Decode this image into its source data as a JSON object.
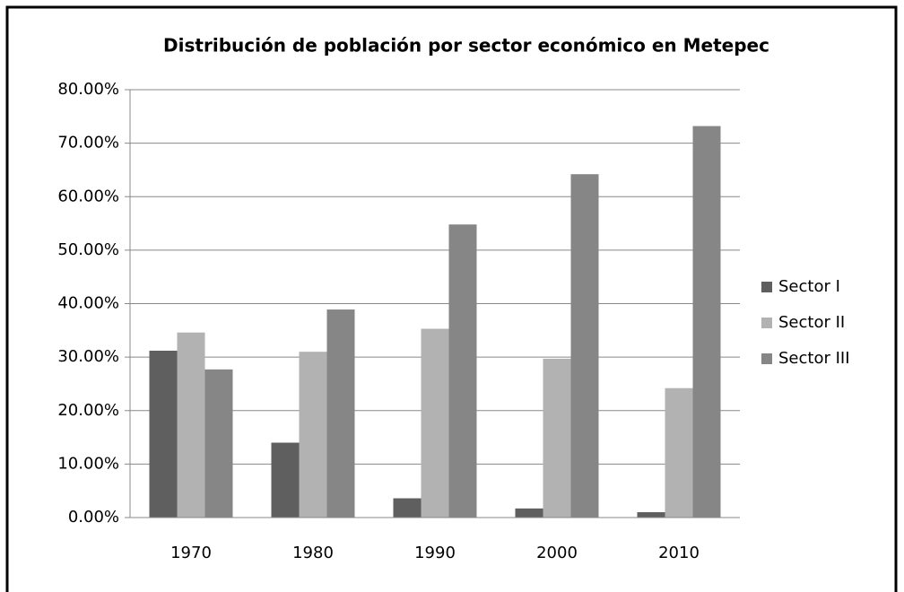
{
  "chart_data": {
    "type": "bar",
    "title": "Distribución de población por sector económico en Metepec",
    "categories": [
      "1970",
      "1980",
      "1990",
      "2000",
      "2010"
    ],
    "series": [
      {
        "name": "Sector I",
        "color": "#5f5f5f",
        "values": [
          31.2,
          14.0,
          3.6,
          1.7,
          1.0
        ]
      },
      {
        "name": "Sector II",
        "color": "#b2b2b2",
        "values": [
          34.6,
          31.0,
          35.3,
          29.7,
          24.2
        ]
      },
      {
        "name": "Sector III",
        "color": "#868686",
        "values": [
          27.7,
          38.9,
          54.8,
          64.2,
          73.2
        ]
      }
    ],
    "ylim": [
      0,
      80
    ],
    "yticks": [
      {
        "value": 0,
        "label": "0.00%"
      },
      {
        "value": 10,
        "label": "10.00%"
      },
      {
        "value": 20,
        "label": "20.00%"
      },
      {
        "value": 30,
        "label": "30.00%"
      },
      {
        "value": 40,
        "label": "40.00%"
      },
      {
        "value": 50,
        "label": "50.00%"
      },
      {
        "value": 60,
        "label": "60.00%"
      },
      {
        "value": 70,
        "label": "70.00%"
      },
      {
        "value": 80,
        "label": "80.00%"
      }
    ],
    "grid": true,
    "legend": "right"
  }
}
